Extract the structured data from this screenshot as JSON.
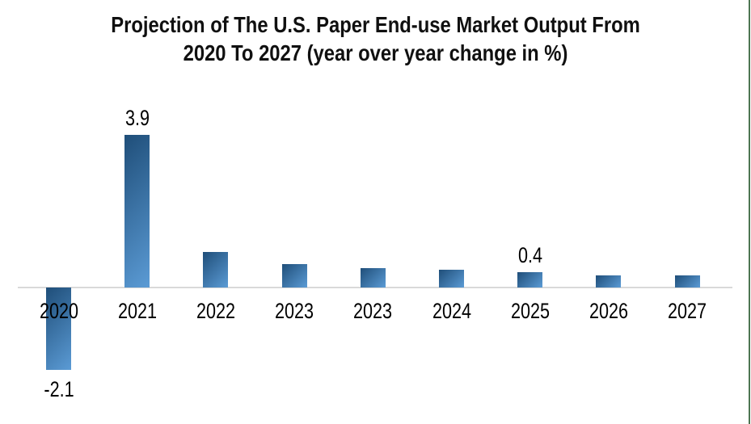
{
  "page": {
    "background": "#ffffff",
    "right_border_color": "#4d7551"
  },
  "chart_data": {
    "type": "bar",
    "title": "Projection of The U.S. Paper End-use Market Output From 2020 To 2027 (year over year change in %)",
    "title_lines": [
      "Projection of The U.S. Paper End-use Market Output From",
      "2020 To 2027 (year over year change in %)"
    ],
    "categories": [
      "2020",
      "2021",
      "2022",
      "2023",
      "2023",
      "2024",
      "2025",
      "2026",
      "2027"
    ],
    "values": [
      -2.1,
      3.9,
      0.9,
      0.6,
      0.5,
      0.45,
      0.4,
      0.3,
      0.3
    ],
    "data_labels": [
      "-2.1",
      "3.9",
      "",
      "",
      "",
      "",
      "0.4",
      "",
      ""
    ],
    "xlabel": "",
    "ylabel": "",
    "ylim": [
      -2.5,
      4.5
    ],
    "grid": "off",
    "legend": "none",
    "bar_gradient": [
      "#1f4e79",
      "#5b9bd5"
    ],
    "axis_line_color": "#d9d9d9",
    "label_color": "#000000"
  }
}
